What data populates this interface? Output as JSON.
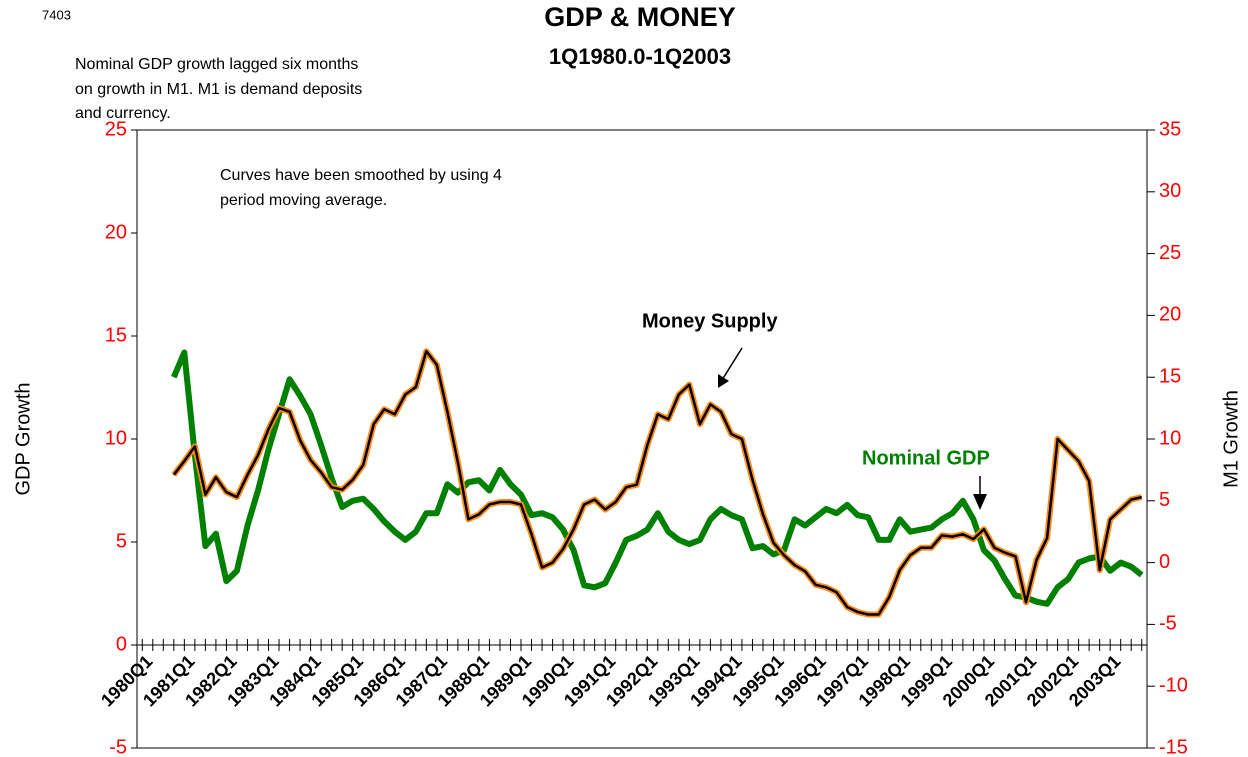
{
  "chart_data": {
    "type": "line",
    "id_label": "7403",
    "title": "GDP & MONEY",
    "subtitle": "1Q1980.0-1Q2003",
    "note": [
      "Nominal GDP growth lagged six months",
      "on growth in M1.  M1 is demand deposits",
      "and currency."
    ],
    "annotation": [
      "Curves have been smoothed by using 4",
      "period moving average."
    ],
    "ylabel": "GDP Growth",
    "y2label": "M1 Growth",
    "categories": [
      "1980Q1",
      null,
      null,
      null,
      "1981Q1",
      null,
      null,
      null,
      "1982Q1",
      null,
      null,
      null,
      "1983Q1",
      null,
      null,
      null,
      "1984Q1",
      null,
      null,
      null,
      "1985Q1",
      null,
      null,
      null,
      "1986Q1",
      null,
      null,
      null,
      "1987Q1",
      null,
      null,
      null,
      "1988Q1",
      null,
      null,
      null,
      "1989Q1",
      null,
      null,
      null,
      "1990Q1",
      null,
      null,
      null,
      "1991Q1",
      null,
      null,
      null,
      "1992Q1",
      null,
      null,
      null,
      "1993Q1",
      null,
      null,
      null,
      "1994Q1",
      null,
      null,
      null,
      "1995Q1",
      null,
      null,
      null,
      "1996Q1",
      null,
      null,
      null,
      "1997Q1",
      null,
      null,
      null,
      "1998Q1",
      null,
      null,
      null,
      "1999Q1",
      null,
      null,
      null,
      "2000Q1",
      null,
      null,
      null,
      "2001Q1",
      null,
      null,
      null,
      "2002Q1",
      null,
      null,
      null,
      "2003Q1",
      null,
      null,
      null
    ],
    "ylim": [
      -5,
      25
    ],
    "yticks": [
      -5,
      0,
      5,
      10,
      15,
      20,
      25
    ],
    "y2lim": [
      -15,
      35
    ],
    "y2ticks": [
      -15,
      -10,
      -5,
      0,
      5,
      10,
      15,
      20,
      25,
      30,
      35
    ],
    "tick_color": "#ff0000",
    "series": [
      {
        "name": "Nominal GDP",
        "color": "#008000",
        "values": [
          null,
          null,
          null,
          13.0,
          14.2,
          9.2,
          4.8,
          5.4,
          3.1,
          3.6,
          5.8,
          7.5,
          9.5,
          11.2,
          12.9,
          12.1,
          11.2,
          9.7,
          8.1,
          6.7,
          7.0,
          7.1,
          6.6,
          6.0,
          5.5,
          5.1,
          5.5,
          6.4,
          6.4,
          7.8,
          7.4,
          7.9,
          8.0,
          7.5,
          8.5,
          7.8,
          7.3,
          6.3,
          6.4,
          6.2,
          5.6,
          4.6,
          2.9,
          2.8,
          3.0,
          4.0,
          5.1,
          5.3,
          5.6,
          6.4,
          5.5,
          5.1,
          4.9,
          5.1,
          6.1,
          6.6,
          6.3,
          6.1,
          4.7,
          4.8,
          4.4,
          4.6,
          6.1,
          5.8,
          6.2,
          6.6,
          6.4,
          6.8,
          6.3,
          6.2,
          5.1,
          5.1,
          6.1,
          5.5,
          5.6,
          5.7,
          6.1,
          6.4,
          7.0,
          6.1,
          4.6,
          4.1,
          3.2,
          2.4,
          2.3,
          2.1,
          2.0,
          2.8,
          3.2,
          4.0,
          4.2,
          4.3,
          3.6,
          4.0,
          3.8,
          3.4
        ]
      },
      {
        "name": "Money Supply",
        "color": "#000000",
        "outline": "#ff8c1a",
        "axis": "y2",
        "values": [
          null,
          null,
          null,
          7.1,
          8.2,
          9.4,
          5.5,
          6.9,
          5.7,
          5.3,
          7.1,
          8.7,
          10.8,
          12.5,
          12.2,
          9.9,
          8.3,
          7.3,
          6.1,
          5.9,
          6.7,
          7.9,
          11.2,
          12.4,
          12.0,
          13.6,
          14.2,
          17.1,
          16.0,
          12.2,
          8.1,
          3.5,
          3.9,
          4.7,
          4.9,
          4.9,
          4.7,
          2.3,
          -0.4,
          0.0,
          1.1,
          2.7,
          4.7,
          5.1,
          4.3,
          4.9,
          6.1,
          6.3,
          9.5,
          12.0,
          11.6,
          13.6,
          14.4,
          11.2,
          12.8,
          12.2,
          10.4,
          10.0,
          6.7,
          3.9,
          1.6,
          0.6,
          -0.2,
          -0.7,
          -1.8,
          -2.0,
          -2.4,
          -3.6,
          -4.0,
          -4.2,
          -4.2,
          -2.8,
          -0.6,
          0.6,
          1.2,
          1.2,
          2.2,
          2.1,
          2.3,
          1.9,
          2.7,
          1.2,
          0.8,
          0.5,
          -3.2,
          0.2,
          2.0,
          10.0,
          9.1,
          8.2,
          6.6,
          -0.6,
          3.5,
          4.3,
          5.1,
          5.3
        ]
      }
    ]
  }
}
